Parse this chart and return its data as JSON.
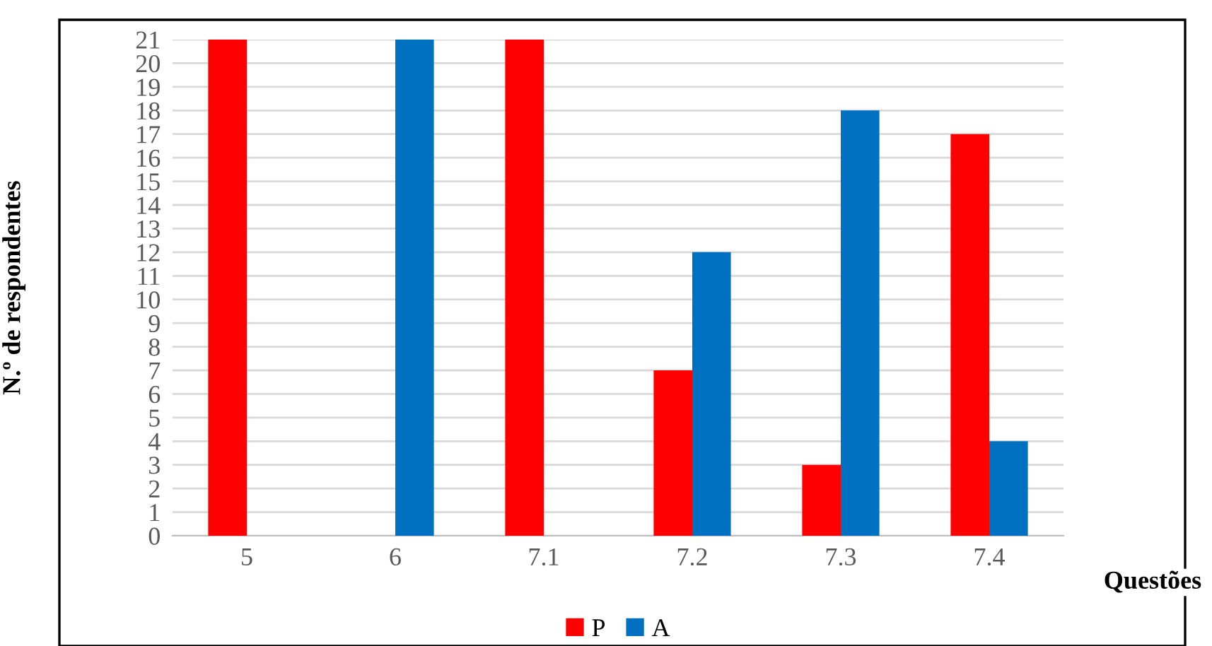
{
  "chart_data": {
    "type": "bar",
    "xlabel": "Questões",
    "ylabel": "N.º de respondentes",
    "categories": [
      "5",
      "6",
      "7.1",
      "7.2",
      "7.3",
      "7.4"
    ],
    "series": [
      {
        "name": "P",
        "color": "#ff0000",
        "values": [
          21,
          0,
          21,
          7,
          3,
          17
        ]
      },
      {
        "name": "A",
        "color": "#0070c0",
        "values": [
          0,
          21,
          0,
          12,
          18,
          4
        ]
      }
    ],
    "ylim": [
      0,
      21
    ],
    "yticks": [
      0,
      1,
      2,
      3,
      4,
      5,
      6,
      7,
      8,
      9,
      10,
      11,
      12,
      13,
      14,
      15,
      16,
      17,
      18,
      19,
      20,
      21
    ],
    "grid": "y",
    "legend": "bottom"
  }
}
